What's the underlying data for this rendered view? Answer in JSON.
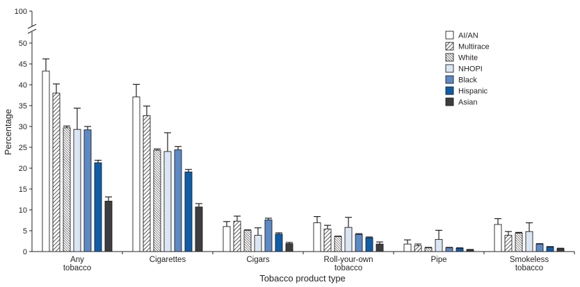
{
  "chart_data": {
    "type": "bar",
    "xlabel": "Tobacco product type",
    "ylabel": "Percentage",
    "ylim": [
      0,
      100
    ],
    "axis_break": [
      50,
      100
    ],
    "y_ticks": [
      "0",
      "5",
      "10",
      "15",
      "20",
      "25",
      "30",
      "35",
      "40",
      "45",
      "50",
      "100"
    ],
    "categories": [
      [
        "Any",
        "tobacco"
      ],
      [
        "Cigarettes"
      ],
      [
        "Cigars"
      ],
      [
        "Roll-your-own",
        "tobacco"
      ],
      [
        "Pipe"
      ],
      [
        "Smokeless",
        "tobacco"
      ]
    ],
    "legend_position": "top-right",
    "series": [
      {
        "name": "AI/AN",
        "pattern": "white",
        "values": [
          43.3,
          37.1,
          6.0,
          6.9,
          1.8,
          6.5
        ],
        "ci_upper": [
          46.2,
          40.1,
          7.2,
          8.4,
          2.8,
          7.9
        ]
      },
      {
        "name": "Multirace",
        "pattern": "diagonal-hatch",
        "values": [
          38.0,
          32.6,
          7.3,
          5.4,
          1.4,
          3.9
        ],
        "ci_upper": [
          40.2,
          34.9,
          8.5,
          6.3,
          1.8,
          4.8
        ]
      },
      {
        "name": "White",
        "pattern": "dense-hatch",
        "values": [
          29.7,
          24.3,
          5.1,
          3.6,
          0.9,
          4.4
        ],
        "ci_upper": [
          30.1,
          24.6,
          5.2,
          3.7,
          1.0,
          4.6
        ]
      },
      {
        "name": "NHOPI",
        "pattern": "light-blue",
        "values": [
          29.3,
          24.0,
          3.9,
          5.8,
          2.9,
          4.8
        ],
        "ci_upper": [
          34.4,
          28.5,
          5.7,
          8.2,
          5.1,
          6.9
        ]
      },
      {
        "name": "Black",
        "pattern": "medium-blue",
        "values": [
          29.2,
          24.4,
          7.6,
          4.1,
          0.9,
          1.8
        ],
        "ci_upper": [
          30.0,
          25.2,
          8.0,
          4.3,
          1.0,
          1.9
        ]
      },
      {
        "name": "Hispanic",
        "pattern": "dark-blue",
        "values": [
          21.3,
          19.1,
          4.2,
          3.3,
          0.8,
          1.1
        ],
        "ci_upper": [
          21.9,
          19.7,
          4.5,
          3.5,
          0.9,
          1.2
        ]
      },
      {
        "name": "Asian",
        "pattern": "dark-gray",
        "values": [
          12.1,
          10.7,
          1.9,
          1.8,
          0.4,
          0.7
        ],
        "ci_upper": [
          13.1,
          11.5,
          2.2,
          2.3,
          0.5,
          0.8
        ]
      }
    ],
    "colors": {
      "AI/AN": "#ffffff",
      "Multirace": "#ffffff",
      "White": "#ffffff",
      "NHOPI": "#dbe6f4",
      "Black": "#5c8ac6",
      "Hispanic": "#0d5eaa",
      "Asian": "#3d3d3f",
      "ink": "#231f20"
    },
    "grid": false
  }
}
